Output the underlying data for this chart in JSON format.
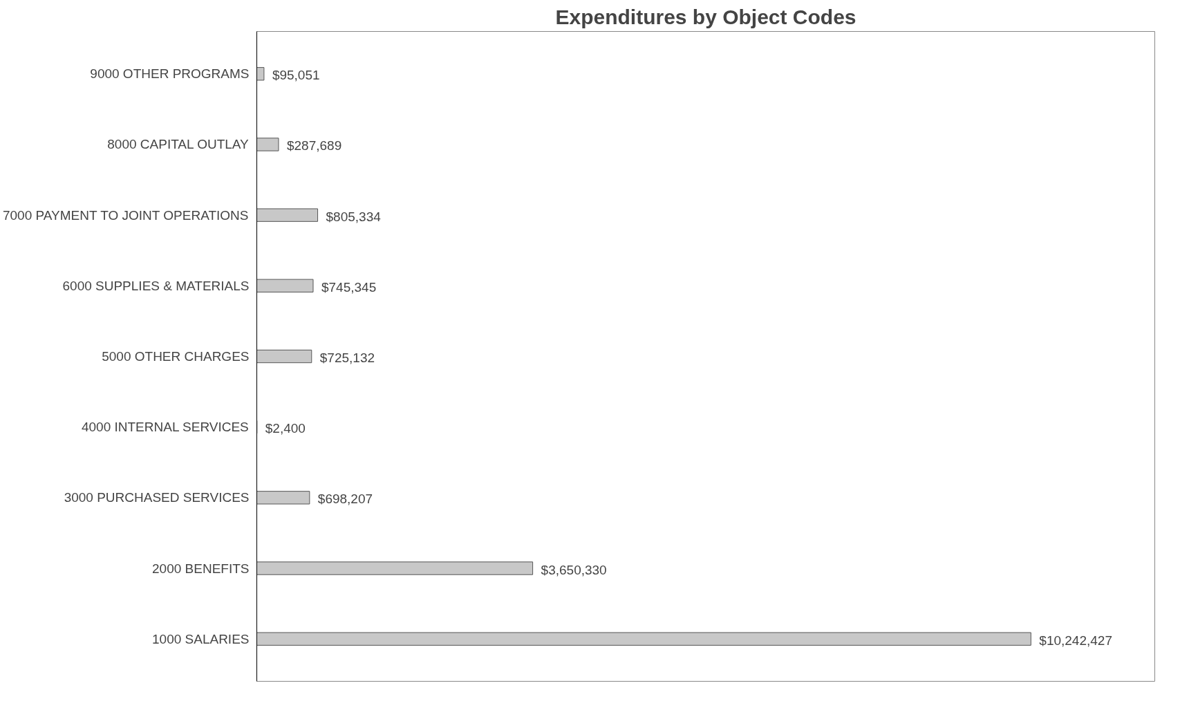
{
  "chart_data": {
    "type": "bar",
    "orientation": "horizontal",
    "title": "Expenditures by Object Codes",
    "categories": [
      "9000 OTHER PROGRAMS",
      "8000 CAPITAL OUTLAY",
      "7000 PAYMENT TO JOINT OPERATIONS",
      "6000 SUPPLIES & MATERIALS",
      "5000 OTHER CHARGES",
      "4000 INTERNAL SERVICES",
      "3000 PURCHASED SERVICES",
      "2000 BENEFITS",
      "1000 SALARIES"
    ],
    "values": [
      95051,
      287689,
      805334,
      745345,
      725132,
      2400,
      698207,
      3650330,
      10242427
    ],
    "value_labels": [
      "$95,051",
      "$287,689",
      "$805,334",
      "$745,345",
      "$725,132",
      "$2,400",
      "$698,207",
      "$3,650,330",
      "$10,242,427"
    ],
    "color": "#c8c8c8",
    "grid": false
  }
}
